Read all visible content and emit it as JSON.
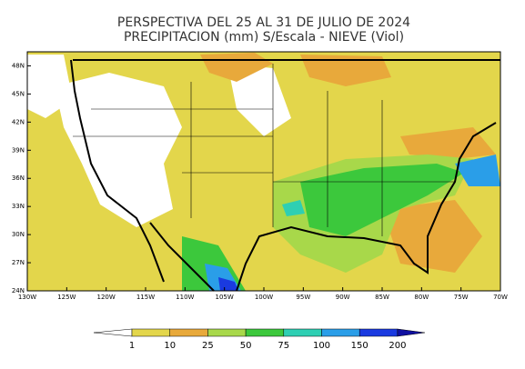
{
  "title": [
    "PERSPECTIVA DEL 25 AL 31 DE JULIO DE 2024",
    "PRECIPITACION (mm) S/Escala - NIEVE (Viol)"
  ],
  "map": {
    "lonlim": [
      -130,
      -70
    ],
    "latlim": [
      24,
      49.5
    ],
    "lat_ticks": [
      {
        "value": 48,
        "label": "48N"
      },
      {
        "value": 45,
        "label": "45N"
      },
      {
        "value": 42,
        "label": "42N"
      },
      {
        "value": 39,
        "label": "39N"
      },
      {
        "value": 36,
        "label": "36N"
      },
      {
        "value": 33,
        "label": "33N"
      },
      {
        "value": 30,
        "label": "30N"
      },
      {
        "value": 27,
        "label": "27N"
      },
      {
        "value": 24,
        "label": "24N"
      }
    ],
    "lon_ticks": [
      {
        "value": -130,
        "label": "130W"
      },
      {
        "value": -125,
        "label": "125W"
      },
      {
        "value": -120,
        "label": "120W"
      },
      {
        "value": -115,
        "label": "115W"
      },
      {
        "value": -110,
        "label": "110W"
      },
      {
        "value": -105,
        "label": "105W"
      },
      {
        "value": -100,
        "label": "100W"
      },
      {
        "value": -95,
        "label": "95W"
      },
      {
        "value": -90,
        "label": "90W"
      },
      {
        "value": -85,
        "label": "85W"
      },
      {
        "value": -80,
        "label": "80W"
      },
      {
        "value": -75,
        "label": "75W"
      },
      {
        "value": -70,
        "label": "70W"
      }
    ]
  },
  "colorbar": {
    "levels": [
      1,
      10,
      25,
      50,
      75,
      100,
      150,
      200
    ],
    "colors": [
      "#ffffff",
      "#e3d64b",
      "#e8a93b",
      "#a8d84a",
      "#3cc83c",
      "#2ecfb3",
      "#2a9ee8",
      "#1a3ae0",
      "#1010a0"
    ]
  }
}
